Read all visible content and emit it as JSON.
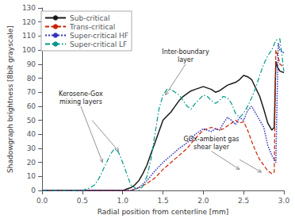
{
  "chart_data": {
    "type": "line",
    "xlabel": "Radial position from centerline [mm]",
    "ylabel": "Shadowgraph brightness [8bit grayscale]",
    "xlim": [
      0.0,
      3.0
    ],
    "ylim": [
      0,
      130
    ],
    "xticks": [
      {
        "value": 0.0,
        "label": "0.0"
      },
      {
        "value": 0.5,
        "label": "0.5"
      },
      {
        "value": 1.0,
        "label": "1.0"
      },
      {
        "value": 1.5,
        "label": "1.5"
      },
      {
        "value": 2.0,
        "label": "2.0"
      },
      {
        "value": 2.5,
        "label": "2.5"
      },
      {
        "value": 3.0,
        "label": "3.0"
      }
    ],
    "yticks": [
      0,
      10,
      20,
      30,
      40,
      50,
      60,
      70,
      80,
      90,
      100,
      110,
      120,
      130
    ],
    "grid": false,
    "legend": "upper left",
    "series": [
      {
        "name": "Sub-critical",
        "color": "#1a1a1a",
        "line_style": "solid",
        "x": [
          0.0,
          0.2,
          0.4,
          0.6,
          0.8,
          1.0,
          1.05,
          1.1,
          1.15,
          1.2,
          1.25,
          1.3,
          1.35,
          1.4,
          1.45,
          1.5,
          1.55,
          1.6,
          1.65,
          1.7,
          1.75,
          1.8,
          1.85,
          1.9,
          1.95,
          2.0,
          2.05,
          2.1,
          2.15,
          2.2,
          2.25,
          2.3,
          2.35,
          2.4,
          2.45,
          2.5,
          2.55,
          2.6,
          2.65,
          2.7,
          2.75,
          2.8,
          2.85,
          2.88,
          2.9,
          2.92,
          2.95,
          3.0
        ],
        "values": [
          0,
          0,
          0,
          0,
          0,
          0,
          1,
          2,
          4,
          7,
          12,
          18,
          26,
          34,
          42,
          50,
          53,
          56,
          60,
          64,
          67,
          69,
          71,
          72,
          73,
          74,
          73,
          72,
          70,
          71,
          73,
          75,
          76,
          77,
          79,
          82,
          81,
          79,
          73,
          67,
          58,
          48,
          43,
          45,
          92,
          88,
          85,
          84
        ]
      },
      {
        "name": "Trans-critical",
        "color": "#cc2200",
        "line_style": "dashed",
        "x": [
          0.0,
          0.2,
          0.4,
          0.6,
          0.8,
          1.0,
          1.05,
          1.1,
          1.15,
          1.2,
          1.3,
          1.4,
          1.5,
          1.6,
          1.7,
          1.8,
          1.9,
          2.0,
          2.05,
          2.1,
          2.15,
          2.2,
          2.25,
          2.3,
          2.35,
          2.4,
          2.45,
          2.5,
          2.55,
          2.6,
          2.65,
          2.7,
          2.75,
          2.8,
          2.85,
          2.88,
          2.9,
          2.93,
          2.95,
          3.0
        ],
        "values": [
          0,
          0,
          0,
          0,
          0,
          0,
          0,
          0,
          1,
          2,
          5,
          9,
          15,
          20,
          25,
          30,
          37,
          43,
          44,
          45,
          44,
          43,
          44,
          46,
          48,
          50,
          48,
          49,
          43,
          35,
          28,
          22,
          18,
          14,
          12,
          13,
          100,
          95,
          90,
          88
        ]
      },
      {
        "name": "Super-critical HF",
        "color": "#3333bb",
        "line_style": "dotted",
        "x": [
          0.0,
          0.2,
          0.4,
          0.6,
          0.8,
          1.0,
          1.1,
          1.2,
          1.3,
          1.4,
          1.5,
          1.6,
          1.7,
          1.8,
          1.9,
          2.0,
          2.05,
          2.1,
          2.15,
          2.2,
          2.25,
          2.3,
          2.35,
          2.4,
          2.45,
          2.5,
          2.55,
          2.6,
          2.65,
          2.7,
          2.75,
          2.8,
          2.85,
          2.88,
          2.9,
          2.93,
          2.95,
          3.0
        ],
        "values": [
          0,
          0,
          0,
          0,
          0,
          0,
          0,
          2,
          7,
          14,
          20,
          25,
          30,
          34,
          40,
          44,
          43,
          42,
          44,
          43,
          48,
          52,
          50,
          47,
          52,
          50,
          57,
          60,
          55,
          50,
          45,
          32,
          25,
          22,
          20,
          105,
          100,
          98
        ]
      },
      {
        "name": "Super-critical LF",
        "color": "#009988",
        "line_style": "dashdot",
        "x": [
          0.0,
          0.2,
          0.4,
          0.5,
          0.55,
          0.6,
          0.65,
          0.7,
          0.75,
          0.8,
          0.85,
          0.9,
          0.95,
          1.0,
          1.05,
          1.1,
          1.15,
          1.2,
          1.25,
          1.3,
          1.35,
          1.4,
          1.45,
          1.5,
          1.55,
          1.6,
          1.65,
          1.7,
          1.75,
          1.8,
          1.85,
          1.9,
          1.95,
          2.0,
          2.05,
          2.1,
          2.15,
          2.2,
          2.25,
          2.3,
          2.35,
          2.4,
          2.45,
          2.5,
          2.55,
          2.6,
          2.65,
          2.7,
          2.75,
          2.8,
          2.85,
          2.9,
          2.95,
          3.0
        ],
        "values": [
          0,
          0,
          0,
          0,
          1,
          2,
          4,
          8,
          14,
          20,
          26,
          30,
          27,
          20,
          12,
          4,
          2,
          0,
          3,
          10,
          22,
          40,
          58,
          68,
          72,
          72,
          70,
          68,
          64,
          60,
          58,
          62,
          65,
          68,
          67,
          64,
          62,
          64,
          67,
          66,
          62,
          55,
          52,
          55,
          60,
          66,
          73,
          82,
          90,
          96,
          100,
          107,
          108,
          85
        ]
      }
    ],
    "annotations": [
      {
        "text": "Inter-boundary\nlayer",
        "xytext": [
          1.78,
          90
        ],
        "color": "#888888",
        "arrows": [
          {
            "from": [
              1.78,
              90
            ],
            "to": [
              1.53,
              68
            ]
          }
        ]
      },
      {
        "text": "Kerosene-Gox\nmixing layers",
        "xytext": [
          0.48,
          60
        ],
        "color": "#888888",
        "arrows": [
          {
            "from": [
              0.48,
              60
            ],
            "to": [
              0.75,
              20
            ]
          },
          {
            "from": [
              0.62,
              50
            ],
            "to": [
              0.95,
              28
            ]
          }
        ]
      },
      {
        "text": "GOx-ambient gas\nshear layer",
        "xytext": [
          2.1,
          28
        ],
        "color": "#888888",
        "arrows": [
          {
            "from": [
              2.1,
              28
            ],
            "to": [
              2.45,
              15
            ]
          },
          {
            "from": [
              2.45,
              22
            ],
            "to": [
              2.72,
              13
            ]
          }
        ]
      }
    ]
  }
}
